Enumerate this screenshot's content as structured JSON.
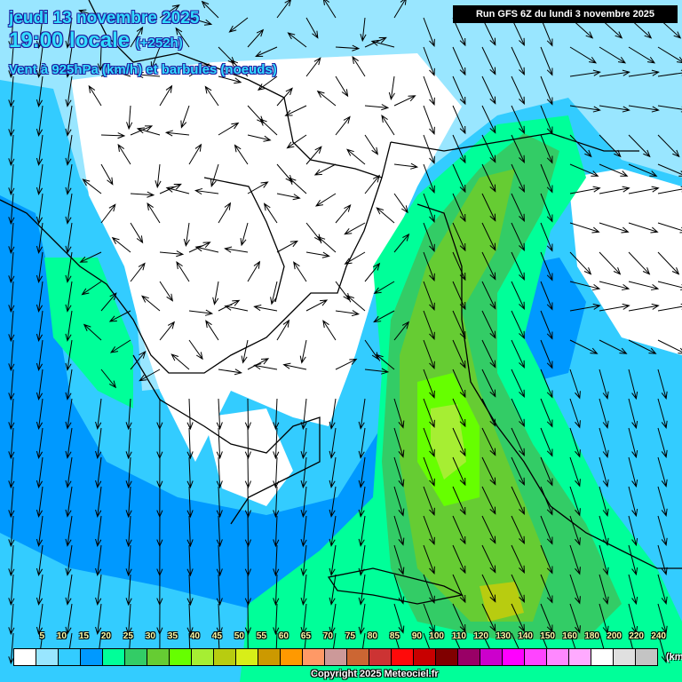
{
  "header": {
    "date": "jeudi 13 novembre 2025",
    "time": "19:00 locale",
    "lead": "(+252h)",
    "variable": "Vent à 925hPa (km/h) et barbules (noeuds)",
    "run": "Run GFS 6Z du lundi 3 novembre 2025"
  },
  "legend": {
    "unit": "(km/h)",
    "items": [
      {
        "label": "5",
        "color": "#ffffff"
      },
      {
        "label": "10",
        "color": "#99e6ff"
      },
      {
        "label": "15",
        "color": "#33ccff"
      },
      {
        "label": "20",
        "color": "#0099ff"
      },
      {
        "label": "25",
        "color": "#00ff99"
      },
      {
        "label": "30",
        "color": "#33cc66"
      },
      {
        "label": "35",
        "color": "#66cc33"
      },
      {
        "label": "40",
        "color": "#66ff00"
      },
      {
        "label": "45",
        "color": "#a6ee33"
      },
      {
        "label": "50",
        "color": "#b8cc10"
      },
      {
        "label": "55",
        "color": "#d8ee18"
      },
      {
        "label": "60",
        "color": "#cc9900"
      },
      {
        "label": "65",
        "color": "#ff9900"
      },
      {
        "label": "70",
        "color": "#ff9966"
      },
      {
        "label": "75",
        "color": "#cc9999"
      },
      {
        "label": "80",
        "color": "#cc6633"
      },
      {
        "label": "85",
        "color": "#cc3333"
      },
      {
        "label": "90",
        "color": "#ff0a0a"
      },
      {
        "label": "100",
        "color": "#c80000"
      },
      {
        "label": "110",
        "color": "#800000"
      },
      {
        "label": "120",
        "color": "#990066"
      },
      {
        "label": "130",
        "color": "#cc00cc"
      },
      {
        "label": "140",
        "color": "#ff00ff"
      },
      {
        "label": "150",
        "color": "#ff44ff"
      },
      {
        "label": "160",
        "color": "#ff88ff"
      },
      {
        "label": "180",
        "color": "#ffaaff"
      },
      {
        "label": "200",
        "color": "#ffffff"
      },
      {
        "label": "220",
        "color": "#e0e0e0"
      },
      {
        "label": "240",
        "color": "#c4c4c4"
      }
    ]
  },
  "copyright": "Copyright 2025 Meteociel.fr"
}
